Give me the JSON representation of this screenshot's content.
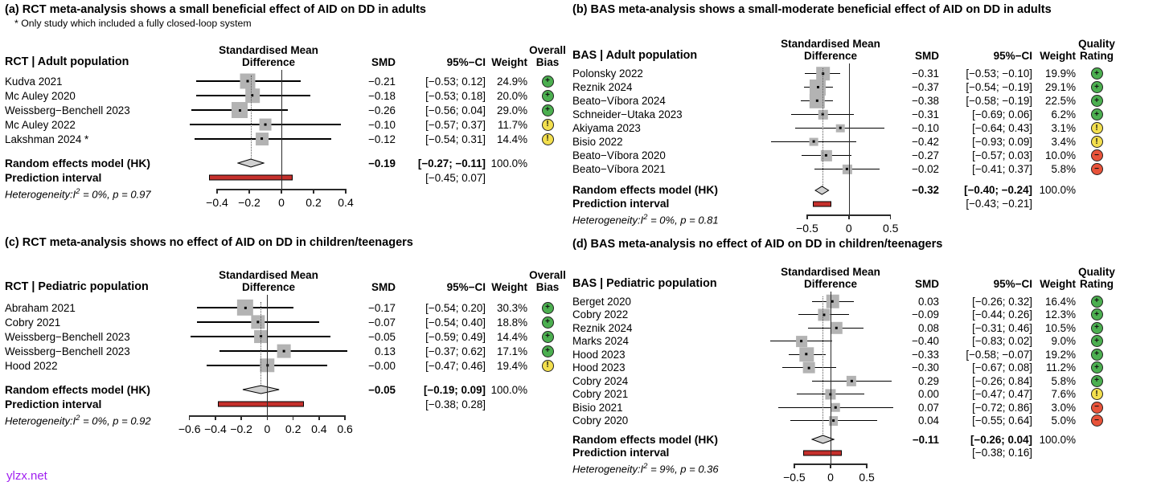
{
  "watermark": {
    "text": "ylzx.net",
    "color": "#a020f0"
  },
  "colors": {
    "square": "#b3b3b3",
    "diamond_fill": "#d0d0d0",
    "diamond_stroke": "#000000",
    "prediction_bar": "#c5302c",
    "rating": {
      "positive": {
        "fill": "#4caf50",
        "symbol": "+"
      },
      "caution": {
        "fill": "#f3df4e",
        "symbol": "!"
      },
      "negative": {
        "fill": "#e8533a",
        "symbol": "−"
      }
    }
  },
  "chart_data": [
    {
      "id": "a",
      "type": "forest",
      "title": "(a) RCT meta-analysis shows a small beneficial effect of AID on DD in adults",
      "footnote": "* Only study which included a fully closed-loop system",
      "group_label": "RCT | Adult population",
      "effect_header": "Standardised Mean\nDifference",
      "col_headers": {
        "smd": "SMD",
        "ci": "95%−CI",
        "weight": "Weight"
      },
      "rating_header": "Overall\nBias",
      "axis": {
        "domain": [
          -0.62,
          0.46
        ],
        "ticks": [
          -0.4,
          -0.2,
          0,
          0.2,
          0.4
        ],
        "tick_labels": [
          "−0.4",
          "−0.2",
          "0",
          "0.2",
          "0.4"
        ]
      },
      "studies": [
        {
          "label": "Kudva 2021",
          "smd": -0.21,
          "lo": -0.53,
          "hi": 0.12,
          "smd_text": "−0.21",
          "ci_text": "[−0.53; 0.12]",
          "weight": 24.9,
          "weight_text": "24.9%",
          "rating": "positive"
        },
        {
          "label": "Mc Auley 2020",
          "smd": -0.18,
          "lo": -0.53,
          "hi": 0.18,
          "smd_text": "−0.18",
          "ci_text": "[−0.53; 0.18]",
          "weight": 20.0,
          "weight_text": "20.0%",
          "rating": "positive"
        },
        {
          "label": "Weissberg−Benchell 2023",
          "smd": -0.26,
          "lo": -0.56,
          "hi": 0.04,
          "smd_text": "−0.26",
          "ci_text": "[−0.56; 0.04]",
          "weight": 29.0,
          "weight_text": "29.0%",
          "rating": "positive"
        },
        {
          "label": "Mc Auley 2022",
          "smd": -0.1,
          "lo": -0.57,
          "hi": 0.37,
          "smd_text": "−0.10",
          "ci_text": "[−0.57; 0.37]",
          "weight": 11.7,
          "weight_text": "11.7%",
          "rating": "caution"
        },
        {
          "label": "Lakshman 2024 *",
          "smd": -0.12,
          "lo": -0.54,
          "hi": 0.31,
          "smd_text": "−0.12",
          "ci_text": "[−0.54; 0.31]",
          "weight": 14.4,
          "weight_text": "14.4%",
          "rating": "caution"
        }
      ],
      "summary": {
        "label": "Random effects model (HK)",
        "smd": -0.19,
        "lo": -0.27,
        "hi": -0.11,
        "smd_text": "−0.19",
        "ci_text": "[−0.27; −0.11]",
        "weight_text": "100.0%"
      },
      "prediction": {
        "label": "Prediction interval",
        "lo": -0.45,
        "hi": 0.07,
        "ci_text": "[−0.45; 0.07]"
      },
      "heterogeneity": {
        "pre": "Heterogeneity:I",
        "sup": "2",
        "post": " = 0%, p = 0.97"
      }
    },
    {
      "id": "b",
      "type": "forest",
      "title": "(b) BAS meta-analysis shows a small-moderate beneficial effect of AID on DD in adults",
      "group_label": "BAS | Adult population",
      "effect_header": "Standardised Mean\nDifference",
      "col_headers": {
        "smd": "SMD",
        "ci": "95%−CI",
        "weight": "Weight"
      },
      "rating_header": "Quality\nRating",
      "axis": {
        "domain": [
          -1.02,
          0.58
        ],
        "ticks": [
          -0.5,
          0,
          0.5
        ],
        "tick_labels": [
          "−0.5",
          "0",
          "0.5"
        ]
      },
      "studies": [
        {
          "label": "Polonsky 2022",
          "smd": -0.31,
          "lo": -0.53,
          "hi": -0.1,
          "smd_text": "−0.31",
          "ci_text": "[−0.53; −0.10]",
          "weight": 19.9,
          "weight_text": "19.9%",
          "rating": "positive"
        },
        {
          "label": "Reznik 2024",
          "smd": -0.37,
          "lo": -0.54,
          "hi": -0.19,
          "smd_text": "−0.37",
          "ci_text": "[−0.54; −0.19]",
          "weight": 29.1,
          "weight_text": "29.1%",
          "rating": "positive"
        },
        {
          "label": "Beato−Víbora 2024",
          "smd": -0.38,
          "lo": -0.58,
          "hi": -0.19,
          "smd_text": "−0.38",
          "ci_text": "[−0.58; −0.19]",
          "weight": 22.5,
          "weight_text": "22.5%",
          "rating": "positive"
        },
        {
          "label": "Schneider−Utaka 2023",
          "smd": -0.31,
          "lo": -0.69,
          "hi": 0.06,
          "smd_text": "−0.31",
          "ci_text": "[−0.69; 0.06]",
          "weight": 6.2,
          "weight_text": "6.2%",
          "rating": "positive"
        },
        {
          "label": "Akiyama 2023",
          "smd": -0.1,
          "lo": -0.64,
          "hi": 0.43,
          "smd_text": "−0.10",
          "ci_text": "[−0.64; 0.43]",
          "weight": 3.1,
          "weight_text": "3.1%",
          "rating": "caution"
        },
        {
          "label": "Bisio 2022",
          "smd": -0.42,
          "lo": -0.93,
          "hi": 0.09,
          "smd_text": "−0.42",
          "ci_text": "[−0.93; 0.09]",
          "weight": 3.4,
          "weight_text": "3.4%",
          "rating": "caution"
        },
        {
          "label": "Beato−Víbora 2020",
          "smd": -0.27,
          "lo": -0.57,
          "hi": 0.03,
          "smd_text": "−0.27",
          "ci_text": "[−0.57; 0.03]",
          "weight": 10.0,
          "weight_text": "10.0%",
          "rating": "negative"
        },
        {
          "label": "Beato−Víbora 2021",
          "smd": -0.02,
          "lo": -0.41,
          "hi": 0.37,
          "smd_text": "−0.02",
          "ci_text": "[−0.41; 0.37]",
          "weight": 5.8,
          "weight_text": "5.8%",
          "rating": "negative"
        }
      ],
      "summary": {
        "label": "Random effects model (HK)",
        "smd": -0.32,
        "lo": -0.4,
        "hi": -0.24,
        "smd_text": "−0.32",
        "ci_text": "[−0.40; −0.24]",
        "weight_text": "100.0%"
      },
      "prediction": {
        "label": "Prediction interval",
        "lo": -0.43,
        "hi": -0.21,
        "ci_text": "[−0.43; −0.21]"
      },
      "heterogeneity": {
        "pre": "Heterogeneity:I",
        "sup": "2",
        "post": " = 0%, p = 0.81"
      }
    },
    {
      "id": "c",
      "type": "forest",
      "title": "(c) RCT meta-analysis shows no effect of AID on DD in children/teenagers",
      "group_label": "RCT | Pediatric population",
      "effect_header": "Standardised Mean\nDifference",
      "col_headers": {
        "smd": "SMD",
        "ci": "95%−CI",
        "weight": "Weight"
      },
      "rating_header": "Overall\nBias",
      "axis": {
        "domain": [
          -0.66,
          0.68
        ],
        "ticks": [
          -0.6,
          -0.4,
          -0.2,
          0,
          0.2,
          0.4,
          0.6
        ],
        "tick_labels": [
          "−0.6",
          "−0.4",
          "−0.2",
          "0",
          "0.2",
          "0.4",
          "0.6"
        ]
      },
      "studies": [
        {
          "label": "Abraham 2021",
          "smd": -0.17,
          "lo": -0.54,
          "hi": 0.2,
          "smd_text": "−0.17",
          "ci_text": "[−0.54; 0.20]",
          "weight": 30.3,
          "weight_text": "30.3%",
          "rating": "positive"
        },
        {
          "label": "Cobry 2021",
          "smd": -0.07,
          "lo": -0.54,
          "hi": 0.4,
          "smd_text": "−0.07",
          "ci_text": "[−0.54; 0.40]",
          "weight": 18.8,
          "weight_text": "18.8%",
          "rating": "positive"
        },
        {
          "label": "Weissberg−Benchell 2023",
          "smd": -0.05,
          "lo": -0.59,
          "hi": 0.49,
          "smd_text": "−0.05",
          "ci_text": "[−0.59; 0.49]",
          "weight": 14.4,
          "weight_text": "14.4%",
          "rating": "positive"
        },
        {
          "label": "Weissberg−Benchell 2023",
          "smd": 0.13,
          "lo": -0.37,
          "hi": 0.62,
          "smd_text": "0.13",
          "ci_text": "[−0.37; 0.62]",
          "weight": 17.1,
          "weight_text": "17.1%",
          "rating": "positive"
        },
        {
          "label": "Hood 2022",
          "smd": 0.0,
          "lo": -0.47,
          "hi": 0.46,
          "smd_text": "−0.00",
          "ci_text": "[−0.47; 0.46]",
          "weight": 19.4,
          "weight_text": "19.4%",
          "rating": "caution"
        }
      ],
      "summary": {
        "label": "Random effects model (HK)",
        "smd": -0.05,
        "lo": -0.19,
        "hi": 0.09,
        "smd_text": "−0.05",
        "ci_text": "[−0.19; 0.09]",
        "weight_text": "100.0%"
      },
      "prediction": {
        "label": "Prediction interval",
        "lo": -0.38,
        "hi": 0.28,
        "ci_text": "[−0.38; 0.28]"
      },
      "heterogeneity": {
        "pre": "Heterogeneity:I",
        "sup": "2",
        "post": " = 0%, p = 0.92"
      }
    },
    {
      "id": "d",
      "type": "forest",
      "title": "(d) BAS meta-analysis no effect of AID on DD in children/teenagers",
      "group_label": "BAS | Pediatric population",
      "effect_header": "Standardised Mean\nDifference",
      "col_headers": {
        "smd": "SMD",
        "ci": "95%−CI",
        "weight": "Weight"
      },
      "rating_header": "Quality\nRating",
      "axis": {
        "domain": [
          -0.92,
          0.92
        ],
        "ticks": [
          -0.5,
          0,
          0.5
        ],
        "tick_labels": [
          "−0.5",
          "0",
          "0.5"
        ]
      },
      "studies": [
        {
          "label": "Berget 2020",
          "smd": 0.03,
          "lo": -0.26,
          "hi": 0.32,
          "smd_text": "0.03",
          "ci_text": "[−0.26; 0.32]",
          "weight": 16.4,
          "weight_text": "16.4%",
          "rating": "positive"
        },
        {
          "label": "Cobry 2022",
          "smd": -0.09,
          "lo": -0.44,
          "hi": 0.26,
          "smd_text": "−0.09",
          "ci_text": "[−0.44; 0.26]",
          "weight": 12.3,
          "weight_text": "12.3%",
          "rating": "positive"
        },
        {
          "label": "Reznik 2024",
          "smd": 0.08,
          "lo": -0.31,
          "hi": 0.46,
          "smd_text": "0.08",
          "ci_text": "[−0.31; 0.46]",
          "weight": 10.5,
          "weight_text": "10.5%",
          "rating": "positive"
        },
        {
          "label": "Marks 2024",
          "smd": -0.4,
          "lo": -0.83,
          "hi": 0.02,
          "smd_text": "−0.40",
          "ci_text": "[−0.83; 0.02]",
          "weight": 9.0,
          "weight_text": "9.0%",
          "rating": "positive"
        },
        {
          "label": "Hood 2023",
          "smd": -0.33,
          "lo": -0.58,
          "hi": -0.07,
          "smd_text": "−0.33",
          "ci_text": "[−0.58; −0.07]",
          "weight": 19.2,
          "weight_text": "19.2%",
          "rating": "positive"
        },
        {
          "label": "Hood 2023",
          "smd": -0.3,
          "lo": -0.67,
          "hi": 0.08,
          "smd_text": "−0.30",
          "ci_text": "[−0.67; 0.08]",
          "weight": 11.2,
          "weight_text": "11.2%",
          "rating": "positive"
        },
        {
          "label": "Cobry 2024",
          "smd": 0.29,
          "lo": -0.26,
          "hi": 0.84,
          "smd_text": "0.29",
          "ci_text": "[−0.26; 0.84]",
          "weight": 5.8,
          "weight_text": "5.8%",
          "rating": "positive"
        },
        {
          "label": "Cobry 2021",
          "smd": 0.0,
          "lo": -0.47,
          "hi": 0.47,
          "smd_text": "0.00",
          "ci_text": "[−0.47; 0.47]",
          "weight": 7.6,
          "weight_text": "7.6%",
          "rating": "caution"
        },
        {
          "label": "Bisio 2021",
          "smd": 0.07,
          "lo": -0.72,
          "hi": 0.86,
          "smd_text": "0.07",
          "ci_text": "[−0.72; 0.86]",
          "weight": 3.0,
          "weight_text": "3.0%",
          "rating": "negative"
        },
        {
          "label": "Cobry 2020",
          "smd": 0.04,
          "lo": -0.55,
          "hi": 0.64,
          "smd_text": "0.04",
          "ci_text": "[−0.55; 0.64]",
          "weight": 5.0,
          "weight_text": "5.0%",
          "rating": "negative"
        }
      ],
      "summary": {
        "label": "Random effects model (HK)",
        "smd": -0.11,
        "lo": -0.26,
        "hi": 0.04,
        "smd_text": "−0.11",
        "ci_text": "[−0.26; 0.04]",
        "weight_text": "100.0%"
      },
      "prediction": {
        "label": "Prediction interval",
        "lo": -0.38,
        "hi": 0.16,
        "ci_text": "[−0.38; 0.16]"
      },
      "heterogeneity": {
        "pre": "Heterogeneity:I",
        "sup": "2",
        "post": " = 9%, p = 0.36"
      }
    }
  ]
}
